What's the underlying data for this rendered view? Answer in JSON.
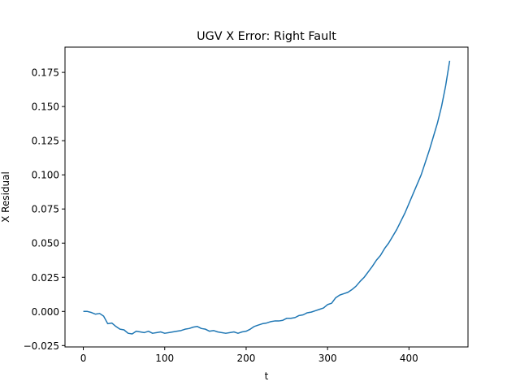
{
  "chart_data": {
    "type": "line",
    "title": "UGV X Error: Right Fault",
    "xlabel": "t",
    "ylabel": "X Residual",
    "xlim": [
      -22.5,
      472.5
    ],
    "ylim": [
      -0.026,
      0.1935
    ],
    "xticks": [
      0,
      100,
      200,
      300,
      400
    ],
    "yticks": [
      -0.025,
      0.0,
      0.025,
      0.05,
      0.075,
      0.1,
      0.125,
      0.15,
      0.175
    ],
    "ytick_labels": [
      "−0.025",
      "0.000",
      "0.025",
      "0.050",
      "0.075",
      "0.100",
      "0.125",
      "0.150",
      "0.175"
    ],
    "grid": false,
    "series": [
      {
        "color": "#1f77b4",
        "x": [
          0,
          5,
          10,
          15,
          20,
          25,
          30,
          35,
          40,
          45,
          50,
          55,
          60,
          65,
          70,
          75,
          80,
          85,
          90,
          95,
          100,
          105,
          110,
          115,
          120,
          125,
          130,
          135,
          140,
          145,
          150,
          155,
          160,
          165,
          170,
          175,
          180,
          185,
          190,
          195,
          200,
          205,
          210,
          215,
          220,
          225,
          230,
          235,
          240,
          245,
          250,
          255,
          260,
          265,
          270,
          275,
          280,
          285,
          290,
          295,
          300,
          305,
          310,
          315,
          320,
          325,
          330,
          335,
          340,
          345,
          350,
          355,
          360,
          365,
          370,
          375,
          380,
          385,
          390,
          395,
          400,
          405,
          410,
          415,
          420,
          425,
          430,
          435,
          440,
          445,
          450
        ],
        "y": [
          0.0,
          0.0,
          -0.0008,
          -0.002,
          -0.0015,
          -0.0035,
          -0.009,
          -0.0085,
          -0.011,
          -0.013,
          -0.0135,
          -0.016,
          -0.0165,
          -0.0145,
          -0.015,
          -0.0155,
          -0.0145,
          -0.016,
          -0.0155,
          -0.015,
          -0.016,
          -0.0155,
          -0.015,
          -0.0145,
          -0.014,
          -0.013,
          -0.0125,
          -0.0115,
          -0.011,
          -0.0125,
          -0.013,
          -0.0145,
          -0.014,
          -0.015,
          -0.0155,
          -0.016,
          -0.0155,
          -0.015,
          -0.016,
          -0.015,
          -0.0145,
          -0.013,
          -0.011,
          -0.01,
          -0.009,
          -0.0085,
          -0.0075,
          -0.007,
          -0.007,
          -0.0065,
          -0.005,
          -0.005,
          -0.0045,
          -0.003,
          -0.0025,
          -0.001,
          -0.0005,
          0.0005,
          0.0015,
          0.0025,
          0.005,
          0.006,
          0.01,
          0.012,
          0.013,
          0.014,
          0.016,
          0.0185,
          0.022,
          0.025,
          0.029,
          0.033,
          0.0375,
          0.041,
          0.046,
          0.05,
          0.055,
          0.06,
          0.066,
          0.072,
          0.079,
          0.086,
          0.093,
          0.1,
          0.109,
          0.118,
          0.128,
          0.138,
          0.15,
          0.165,
          0.1835
        ]
      }
    ]
  }
}
